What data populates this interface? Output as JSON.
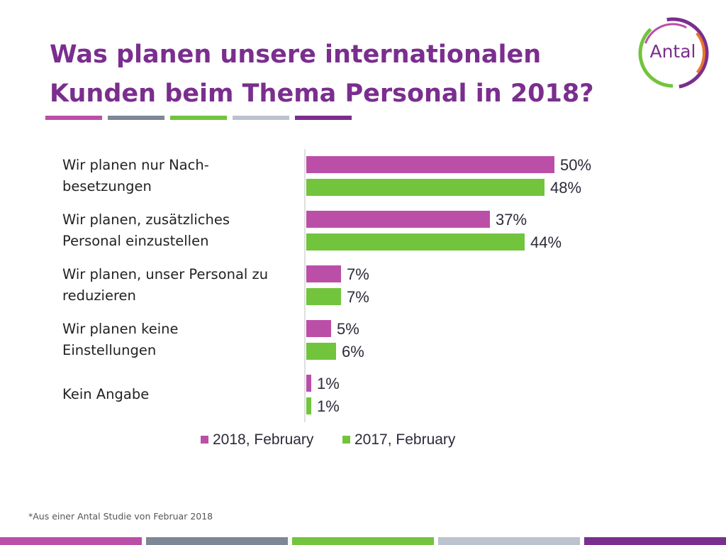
{
  "title_lines": [
    "Was planen unsere internationalen",
    "Kunden beim Thema Personal in 2018?"
  ],
  "logo_text": "Antal",
  "footnote": "*Aus einer Antal Studie von Februar 2018",
  "colors": {
    "title": "#7a2e8e",
    "series_2018": "#bb4fa8",
    "series_2017": "#72c43d",
    "stripe": [
      "#bb4fa8",
      "#7d8796",
      "#72c43d",
      "#bcc3cd",
      "#7a2e8e"
    ]
  },
  "chart_data": {
    "type": "bar",
    "orientation": "horizontal",
    "categories": [
      "Wir planen nur Nach-\nbesetzungen",
      "Wir planen, zusätzliches\nPersonal einzustellen",
      "Wir planen, unser Personal zu\nreduzieren",
      "Wir planen keine\nEinstellungen",
      "Kein Angabe"
    ],
    "series": [
      {
        "name": "2018, February",
        "values": [
          50,
          37,
          7,
          5,
          1
        ],
        "labels": [
          "50%",
          "37%",
          "7%",
          "5%",
          "1%"
        ]
      },
      {
        "name": "2017, February",
        "values": [
          48,
          44,
          7,
          6,
          1
        ],
        "labels": [
          "48%",
          "44%",
          "7%",
          "6%",
          "1%"
        ]
      }
    ],
    "xlim": [
      0,
      50
    ],
    "legend": "bottom"
  }
}
